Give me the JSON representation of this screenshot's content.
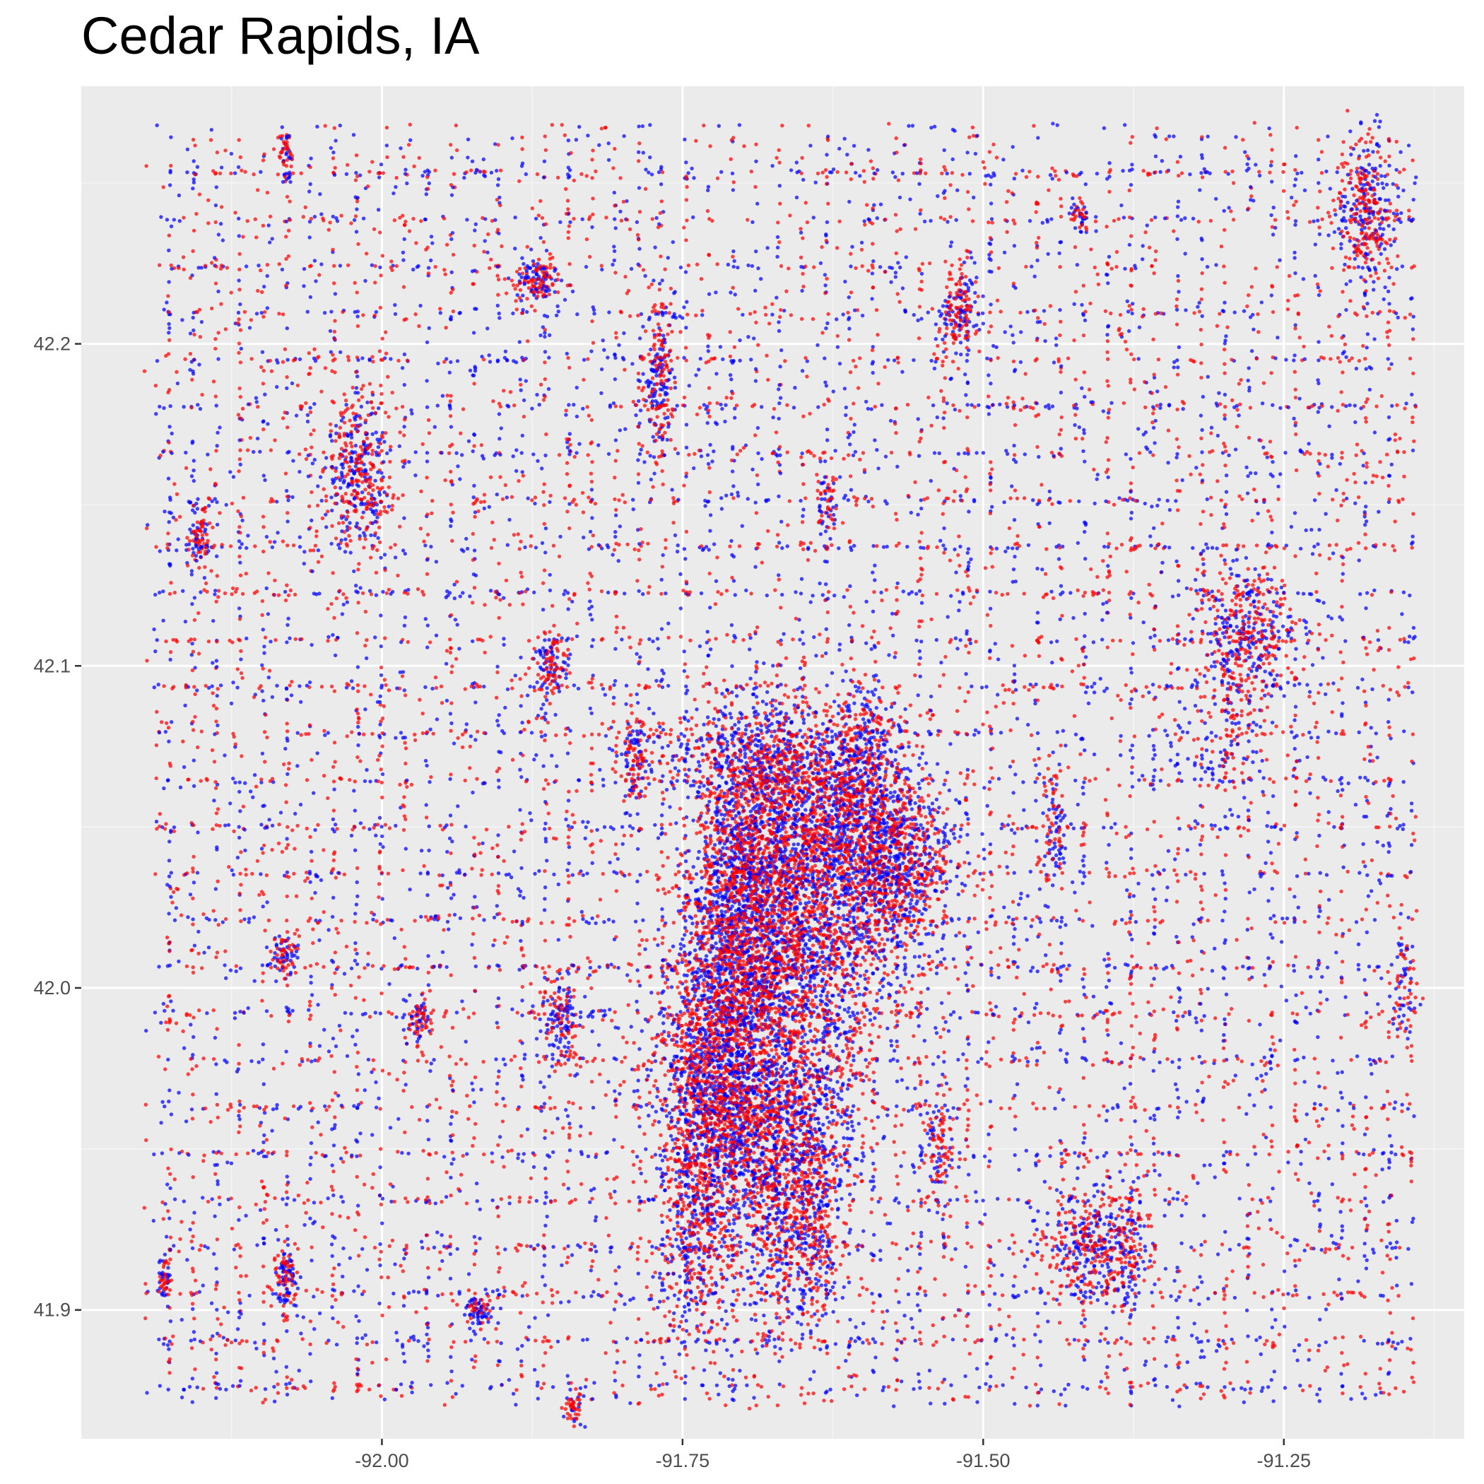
{
  "chart_data": {
    "type": "scatter",
    "title": "Cedar Rapids, IA",
    "xlabel": "",
    "ylabel": "",
    "xlim": [
      -92.25,
      -91.1
    ],
    "ylim": [
      41.86,
      42.28
    ],
    "x_ticks": [
      -92.0,
      -91.75,
      -91.5,
      -91.25
    ],
    "x_tick_labels": [
      "-92.00",
      "-91.75",
      "-91.50",
      "-91.25"
    ],
    "y_ticks": [
      41.9,
      42.0,
      42.1,
      42.2
    ],
    "y_tick_labels": [
      "41.9",
      "42.0",
      "42.1",
      "42.2"
    ],
    "grid": true,
    "legend": "none",
    "colors": {
      "panel_background": "#ebebeb",
      "grid_major": "#ffffff",
      "grid_minor": "#f5f5f5",
      "series_a": "#ff0000",
      "series_b": "#0000ff"
    },
    "series": [
      {
        "color": "#ff0000",
        "point_count": 12000
      },
      {
        "color": "#0000ff",
        "point_count": 12000
      }
    ],
    "density_clusters": [
      {
        "x": -91.66,
        "y": 41.99,
        "weight": 9,
        "spread_x": 0.035,
        "spread_y": 0.04
      },
      {
        "x": -91.62,
        "y": 42.04,
        "weight": 7,
        "spread_x": 0.045,
        "spread_y": 0.02
      },
      {
        "x": -91.72,
        "y": 41.98,
        "weight": 6,
        "spread_x": 0.025,
        "spread_y": 0.02
      },
      {
        "x": -91.7,
        "y": 42.03,
        "weight": 5,
        "spread_x": 0.025,
        "spread_y": 0.02
      },
      {
        "x": -91.68,
        "y": 42.07,
        "weight": 3,
        "spread_x": 0.04,
        "spread_y": 0.01
      },
      {
        "x": -91.69,
        "y": 41.95,
        "weight": 3,
        "spread_x": 0.03,
        "spread_y": 0.015
      },
      {
        "x": -91.74,
        "y": 41.93,
        "weight": 2,
        "spread_x": 0.015,
        "spread_y": 0.02
      },
      {
        "x": -91.66,
        "y": 41.92,
        "weight": 1,
        "spread_x": 0.02,
        "spread_y": 0.015
      },
      {
        "x": -91.6,
        "y": 42.07,
        "weight": 1.5,
        "spread_x": 0.015,
        "spread_y": 0.015
      },
      {
        "x": -91.57,
        "y": 42.04,
        "weight": 2,
        "spread_x": 0.02,
        "spread_y": 0.012
      },
      {
        "x": -91.28,
        "y": 42.11,
        "weight": 1.5,
        "spread_x": 0.02,
        "spread_y": 0.012
      },
      {
        "x": -91.41,
        "y": 41.92,
        "weight": 1.5,
        "spread_x": 0.02,
        "spread_y": 0.01
      },
      {
        "x": -92.02,
        "y": 42.16,
        "weight": 1.5,
        "spread_x": 0.015,
        "spread_y": 0.012
      },
      {
        "x": -91.18,
        "y": 42.24,
        "weight": 1.2,
        "spread_x": 0.012,
        "spread_y": 0.012
      },
      {
        "x": -91.77,
        "y": 42.19,
        "weight": 0.8,
        "spread_x": 0.006,
        "spread_y": 0.015
      },
      {
        "x": -91.52,
        "y": 42.21,
        "weight": 0.6,
        "spread_x": 0.008,
        "spread_y": 0.008
      },
      {
        "x": -91.87,
        "y": 42.22,
        "weight": 0.5,
        "spread_x": 0.01,
        "spread_y": 0.004
      },
      {
        "x": -91.86,
        "y": 42.1,
        "weight": 0.5,
        "spread_x": 0.007,
        "spread_y": 0.007
      },
      {
        "x": -91.85,
        "y": 41.99,
        "weight": 0.6,
        "spread_x": 0.008,
        "spread_y": 0.007
      },
      {
        "x": -91.79,
        "y": 42.07,
        "weight": 0.5,
        "spread_x": 0.007,
        "spread_y": 0.008
      },
      {
        "x": -91.44,
        "y": 42.05,
        "weight": 0.4,
        "spread_x": 0.005,
        "spread_y": 0.01
      },
      {
        "x": -91.3,
        "y": 42.08,
        "weight": 0.6,
        "spread_x": 0.02,
        "spread_y": 0.015
      },
      {
        "x": -91.15,
        "y": 42.0,
        "weight": 0.3,
        "spread_x": 0.005,
        "spread_y": 0.008
      },
      {
        "x": -92.08,
        "y": 42.01,
        "weight": 0.3,
        "spread_x": 0.006,
        "spread_y": 0.004
      },
      {
        "x": -91.97,
        "y": 41.99,
        "weight": 0.3,
        "spread_x": 0.005,
        "spread_y": 0.004
      },
      {
        "x": -92.08,
        "y": 41.91,
        "weight": 0.4,
        "spread_x": 0.005,
        "spread_y": 0.005
      },
      {
        "x": -91.92,
        "y": 41.9,
        "weight": 0.3,
        "spread_x": 0.006,
        "spread_y": 0.003
      },
      {
        "x": -92.15,
        "y": 42.14,
        "weight": 0.25,
        "spread_x": 0.004,
        "spread_y": 0.005
      },
      {
        "x": -92.08,
        "y": 42.26,
        "weight": 0.2,
        "spread_x": 0.003,
        "spread_y": 0.005
      },
      {
        "x": -91.84,
        "y": 41.87,
        "weight": 0.2,
        "spread_x": 0.004,
        "spread_y": 0.003
      },
      {
        "x": -91.63,
        "y": 42.15,
        "weight": 0.25,
        "spread_x": 0.004,
        "spread_y": 0.006
      },
      {
        "x": -91.38,
        "y": 41.92,
        "weight": 0.5,
        "spread_x": 0.008,
        "spread_y": 0.01
      },
      {
        "x": -91.54,
        "y": 41.95,
        "weight": 0.4,
        "spread_x": 0.008,
        "spread_y": 0.01
      },
      {
        "x": -91.64,
        "y": 41.93,
        "weight": 0.6,
        "spread_x": 0.008,
        "spread_y": 0.012
      },
      {
        "x": -91.42,
        "y": 42.24,
        "weight": 0.2,
        "spread_x": 0.004,
        "spread_y": 0.003
      },
      {
        "x": -92.18,
        "y": 41.91,
        "weight": 0.2,
        "spread_x": 0.003,
        "spread_y": 0.004
      }
    ]
  }
}
